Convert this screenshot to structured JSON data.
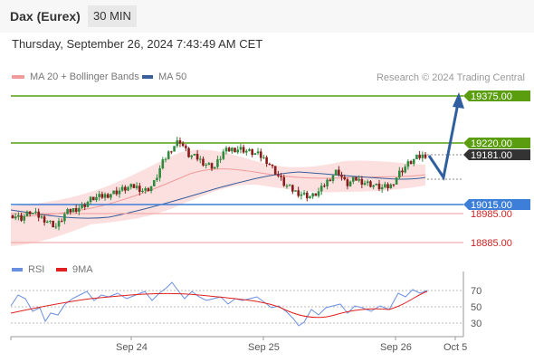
{
  "header": {
    "title": "Dax (Eurex)",
    "timeframe": "30 MIN"
  },
  "date_line": "Thursday, September 26, 2024 7:43:49 AM CET",
  "research": "Research © 2024 Trading Central",
  "legend": {
    "ma_bb": "MA 20 + Bollinger Bands",
    "ma50": "MA 50"
  },
  "rsi_legend": {
    "rsi": "RSI",
    "ma": "9MA"
  },
  "colors": {
    "resistance": "#5a9e0f",
    "support": "#3d7ed8",
    "support_light": "#f09a9a",
    "arrow": "#2f5f9e",
    "last": "#333333",
    "candle_up": "#2e8b3e",
    "candle_down": "#8b1a1a",
    "ma50": "#3a5f9a",
    "bb_fill": "#f9d0d0",
    "rsi": "#6a8fe0",
    "rsi_ma": "#e02020"
  },
  "chart_data": {
    "type": "candlestick",
    "x_ticks": [
      "Sep 24",
      "Sep 25",
      "Sep 26",
      "Oct 5"
    ],
    "levels": [
      {
        "value": 19375.0,
        "label": "19375.00",
        "kind": "resistance"
      },
      {
        "value": 19220.0,
        "label": "19220.00",
        "kind": "resistance"
      },
      {
        "value": 19181.0,
        "label": "19181.00",
        "kind": "last"
      },
      {
        "value": 19015.0,
        "label": "19015.00",
        "kind": "pivot"
      },
      {
        "value": 18985.0,
        "label": "18985.00",
        "kind": "support"
      },
      {
        "value": 18885.0,
        "label": "18885.00",
        "kind": "support"
      }
    ],
    "price_path": [
      18980,
      18970,
      18990,
      18975,
      18960,
      18940,
      18985,
      19000,
      19010,
      19035,
      19040,
      19050,
      19060,
      19070,
      19075,
      19060,
      19080,
      19150,
      19200,
      19230,
      19180,
      19170,
      19150,
      19140,
      19190,
      19200,
      19200,
      19190,
      19180,
      19160,
      19120,
      19080,
      19060,
      19050,
      19040,
      19060,
      19100,
      19130,
      19080,
      19100,
      19090,
      19080,
      19070,
      19075,
      19120,
      19150,
      19170,
      19181
    ],
    "projection": [
      19181,
      19110,
      19375
    ],
    "rsi": {
      "levels": [
        70,
        50,
        30
      ]
    }
  }
}
